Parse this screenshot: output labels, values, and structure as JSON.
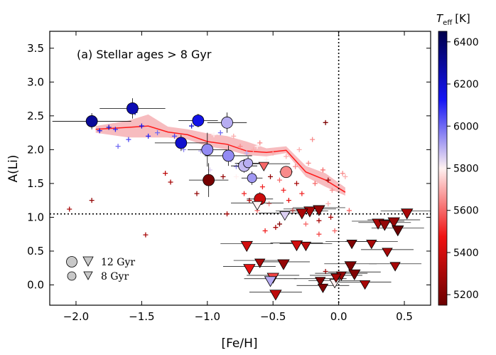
{
  "chart_data": {
    "type": "scatter",
    "title": "(a) Stellar ages > 8 Gyr",
    "xlabel": "[Fe/H]",
    "ylabel": "A(Li)",
    "xlim": [
      -2.2,
      0.7
    ],
    "ylim": [
      -0.3,
      3.75
    ],
    "xticks": [
      -2.0,
      -1.5,
      -1.0,
      -0.5,
      0.0,
      0.5
    ],
    "xtick_labels": [
      "−2.0",
      "−1.5",
      "−1.0",
      "−0.5",
      "0.0",
      "0.5"
    ],
    "yticks": [
      0.0,
      0.5,
      1.0,
      1.5,
      2.0,
      2.5,
      3.0,
      3.5
    ],
    "ytick_labels": [
      "0.0",
      "0.5",
      "1.0",
      "1.5",
      "2.0",
      "2.5",
      "3.0",
      "3.5"
    ],
    "reference_lines": {
      "horizontal_y": 1.05,
      "vertical_x": 0.0,
      "style": "dotted"
    },
    "colorbar": {
      "label_main": "T",
      "label_sub": "eff",
      "label_unit": "[K]",
      "range": [
        5150,
        6450
      ],
      "ticks": [
        5200,
        5400,
        5600,
        5800,
        6000,
        6200,
        6400
      ],
      "colormap": "seismic_r (dark red → white → dark blue)"
    },
    "legend": {
      "position": "lower-left",
      "entries": [
        {
          "label": "12 Gyr",
          "size": "large"
        },
        {
          "label": "8 Gyr",
          "size": "small"
        }
      ]
    },
    "trend_line": {
      "x": [
        -1.85,
        -1.6,
        -1.45,
        -1.3,
        -1.15,
        -1.0,
        -0.85,
        -0.7,
        -0.55,
        -0.4,
        -0.25,
        -0.1,
        0.05
      ],
      "y": [
        2.3,
        2.33,
        2.35,
        2.26,
        2.22,
        2.12,
        2.08,
        1.98,
        1.96,
        1.99,
        1.67,
        1.55,
        1.37
      ],
      "band_upper": [
        2.35,
        2.43,
        2.52,
        2.34,
        2.3,
        2.24,
        2.2,
        2.12,
        2.02,
        2.05,
        1.76,
        1.65,
        1.44
      ],
      "band_lower": [
        2.25,
        2.18,
        2.18,
        2.18,
        2.15,
        2.05,
        2.0,
        1.92,
        1.9,
        1.95,
        1.6,
        1.45,
        1.32
      ]
    },
    "detections": [
      {
        "feh": -1.88,
        "ali": 2.42,
        "teff": 6300,
        "age": 12,
        "xerr": 0.3,
        "yerr": 0.12
      },
      {
        "feh": -1.57,
        "ali": 2.61,
        "teff": 6250,
        "age": 12,
        "xerr": 0.25,
        "yerr": 0.15
      },
      {
        "feh": -1.2,
        "ali": 2.1,
        "teff": 6200,
        "age": 12,
        "xerr": 0.2,
        "yerr": 0.12
      },
      {
        "feh": -1.07,
        "ali": 2.43,
        "teff": 6150,
        "age": 12,
        "xerr": 0.15,
        "yerr": 0.1
      },
      {
        "feh": -1.0,
        "ali": 2.0,
        "teff": 5950,
        "age": 12,
        "xerr": 0.15,
        "yerr": 0.25
      },
      {
        "feh": -0.85,
        "ali": 2.4,
        "teff": 5900,
        "age": 12,
        "xerr": 0.15,
        "yerr": 0.15
      },
      {
        "feh": -0.84,
        "ali": 1.91,
        "teff": 5950,
        "age": 12,
        "xerr": 0.18,
        "yerr": 0.15
      },
      {
        "feh": -0.72,
        "ali": 1.76,
        "teff": 5880,
        "age": 12,
        "xerr": 0.1,
        "yerr": 0.1
      },
      {
        "feh": -0.69,
        "ali": 1.8,
        "teff": 5900,
        "age": 8,
        "xerr": 0.1,
        "yerr": 0.1
      },
      {
        "feh": -0.66,
        "ali": 1.58,
        "teff": 5930,
        "age": 8,
        "xerr": 0.08,
        "yerr": 0.1
      },
      {
        "feh": -0.99,
        "ali": 1.55,
        "teff": 5180,
        "age": 12,
        "xerr": 0.15,
        "yerr": 0.25
      },
      {
        "feh": -0.6,
        "ali": 1.27,
        "teff": 5380,
        "age": 12,
        "xerr": 0.1,
        "yerr": 0.1
      },
      {
        "feh": -0.4,
        "ali": 1.67,
        "teff": 5650,
        "age": 12,
        "xerr": 0.05,
        "yerr": 0.05
      }
    ],
    "upper_limits": [
      {
        "feh": -0.57,
        "ali": 1.75,
        "teff": 5600,
        "age": 8
      },
      {
        "feh": -0.62,
        "ali": 1.17,
        "teff": 5800,
        "age": 8
      },
      {
        "feh": -0.41,
        "ali": 1.02,
        "teff": 5850,
        "age": 8
      },
      {
        "feh": -0.22,
        "ali": 1.08,
        "teff": 5300,
        "age": 12
      },
      {
        "feh": -0.15,
        "ali": 1.1,
        "teff": 5250,
        "age": 12
      },
      {
        "feh": -0.7,
        "ali": 0.57,
        "teff": 5400,
        "age": 12
      },
      {
        "feh": -0.32,
        "ali": 0.58,
        "teff": 5400,
        "age": 12
      },
      {
        "feh": -0.25,
        "ali": 0.57,
        "teff": 5350,
        "age": 8
      },
      {
        "feh": -0.68,
        "ali": 0.23,
        "teff": 5450,
        "age": 12
      },
      {
        "feh": -0.6,
        "ali": 0.32,
        "teff": 5300,
        "age": 8
      },
      {
        "feh": -0.5,
        "ali": 0.1,
        "teff": 5550,
        "age": 12
      },
      {
        "feh": -0.52,
        "ali": 0.05,
        "teff": 5900,
        "age": 12
      },
      {
        "feh": -0.42,
        "ali": 0.3,
        "teff": 5250,
        "age": 12
      },
      {
        "feh": -0.48,
        "ali": -0.15,
        "teff": 5350,
        "age": 12
      },
      {
        "feh": -0.14,
        "ali": 0.05,
        "teff": 5200,
        "age": 8
      },
      {
        "feh": -0.12,
        "ali": -0.05,
        "teff": 5200,
        "age": 8
      },
      {
        "feh": -0.03,
        "ali": 0.02,
        "teff": 5800,
        "age": 8
      },
      {
        "feh": 0.09,
        "ali": 0.27,
        "teff": 5200,
        "age": 12
      },
      {
        "feh": 0.12,
        "ali": 0.15,
        "teff": 5200,
        "age": 12
      },
      {
        "feh": 0.2,
        "ali": 0.0,
        "teff": 5300,
        "age": 8
      },
      {
        "feh": 0.1,
        "ali": 0.6,
        "teff": 5200,
        "age": 8
      },
      {
        "feh": 0.25,
        "ali": 0.6,
        "teff": 5300,
        "age": 8
      },
      {
        "feh": 0.3,
        "ali": 0.9,
        "teff": 5300,
        "age": 12
      },
      {
        "feh": 0.35,
        "ali": 0.88,
        "teff": 5250,
        "age": 12
      },
      {
        "feh": 0.42,
        "ali": 0.92,
        "teff": 5250,
        "age": 12
      },
      {
        "feh": 0.45,
        "ali": 0.8,
        "teff": 5150,
        "age": 12
      },
      {
        "feh": 0.52,
        "ali": 1.05,
        "teff": 5300,
        "age": 12
      },
      {
        "feh": 0.37,
        "ali": 0.48,
        "teff": 5300,
        "age": 8
      },
      {
        "feh": 0.43,
        "ali": 0.27,
        "teff": 5300,
        "age": 8
      },
      {
        "feh": 0.02,
        "ali": 0.13,
        "teff": 5250,
        "age": 8
      },
      {
        "feh": -0.02,
        "ali": 0.1,
        "teff": 5300,
        "age": 8
      },
      {
        "feh": -0.28,
        "ali": 1.05,
        "teff": 5300,
        "age": 12
      }
    ],
    "field_stars": [
      {
        "feh": -2.05,
        "ali": 1.12,
        "teff": 5300
      },
      {
        "feh": -1.88,
        "ali": 1.25,
        "teff": 5250
      },
      {
        "feh": -1.82,
        "ali": 2.28,
        "teff": 6150
      },
      {
        "feh": -1.75,
        "ali": 2.33,
        "teff": 6200
      },
      {
        "feh": -1.7,
        "ali": 2.3,
        "teff": 6100
      },
      {
        "feh": -1.68,
        "ali": 2.05,
        "teff": 6000
      },
      {
        "feh": -1.6,
        "ali": 2.15,
        "teff": 6050
      },
      {
        "feh": -1.55,
        "ali": 2.55,
        "teff": 6200
      },
      {
        "feh": -1.5,
        "ali": 2.35,
        "teff": 6150
      },
      {
        "feh": -1.47,
        "ali": 0.74,
        "teff": 5300
      },
      {
        "feh": -1.45,
        "ali": 2.2,
        "teff": 6100
      },
      {
        "feh": -1.38,
        "ali": 2.25,
        "teff": 6000
      },
      {
        "feh": -1.32,
        "ali": 1.65,
        "teff": 5350
      },
      {
        "feh": -1.28,
        "ali": 1.52,
        "teff": 5300
      },
      {
        "feh": -1.25,
        "ali": 2.2,
        "teff": 6050
      },
      {
        "feh": -1.18,
        "ali": 2.0,
        "teff": 5950
      },
      {
        "feh": -1.12,
        "ali": 2.35,
        "teff": 6200
      },
      {
        "feh": -1.08,
        "ali": 1.35,
        "teff": 5250
      },
      {
        "feh": -1.05,
        "ali": 1.98,
        "teff": 5900
      },
      {
        "feh": -0.98,
        "ali": 1.7,
        "teff": 5850
      },
      {
        "feh": -0.95,
        "ali": 2.22,
        "teff": 5800
      },
      {
        "feh": -0.9,
        "ali": 2.25,
        "teff": 6000
      },
      {
        "feh": -0.85,
        "ali": 1.05,
        "teff": 5300
      },
      {
        "feh": -0.82,
        "ali": 1.85,
        "teff": 5900
      },
      {
        "feh": -0.8,
        "ali": 2.2,
        "teff": 5700
      },
      {
        "feh": -0.78,
        "ali": 1.6,
        "teff": 5800
      },
      {
        "feh": -0.75,
        "ali": 2.05,
        "teff": 5650
      },
      {
        "feh": -0.72,
        "ali": 1.35,
        "teff": 5500
      },
      {
        "feh": -0.7,
        "ali": 1.95,
        "teff": 5900
      },
      {
        "feh": -0.68,
        "ali": 1.25,
        "teff": 5300
      },
      {
        "feh": -0.65,
        "ali": 2.0,
        "teff": 5700
      },
      {
        "feh": -0.62,
        "ali": 1.1,
        "teff": 5600
      },
      {
        "feh": -0.6,
        "ali": 2.1,
        "teff": 5650
      },
      {
        "feh": -0.58,
        "ali": 1.45,
        "teff": 5500
      },
      {
        "feh": -0.55,
        "ali": 1.85,
        "teff": 5800
      },
      {
        "feh": -0.53,
        "ali": 1.2,
        "teff": 5650
      },
      {
        "feh": -0.5,
        "ali": 1.95,
        "teff": 5700
      },
      {
        "feh": -0.48,
        "ali": 0.85,
        "teff": 5300
      },
      {
        "feh": -0.45,
        "ali": 1.55,
        "teff": 5600
      },
      {
        "feh": -0.42,
        "ali": 1.4,
        "teff": 5500
      },
      {
        "feh": -0.4,
        "ali": 1.9,
        "teff": 5700
      },
      {
        "feh": -0.38,
        "ali": 1.25,
        "teff": 5450
      },
      {
        "feh": -0.35,
        "ali": 1.1,
        "teff": 5600
      },
      {
        "feh": -0.33,
        "ali": 1.75,
        "teff": 5650
      },
      {
        "feh": -0.3,
        "ali": 2.0,
        "teff": 5700
      },
      {
        "feh": -0.28,
        "ali": 1.35,
        "teff": 5500
      },
      {
        "feh": -0.25,
        "ali": 0.9,
        "teff": 5600
      },
      {
        "feh": -0.23,
        "ali": 1.8,
        "teff": 5650
      },
      {
        "feh": -0.2,
        "ali": 2.15,
        "teff": 5650
      },
      {
        "feh": -0.18,
        "ali": 1.5,
        "teff": 5600
      },
      {
        "feh": -0.15,
        "ali": 0.75,
        "teff": 5550
      },
      {
        "feh": -0.12,
        "ali": 1.7,
        "teff": 5600
      },
      {
        "feh": -0.1,
        "ali": 2.4,
        "teff": 5200
      },
      {
        "feh": -0.08,
        "ali": 1.2,
        "teff": 5700
      },
      {
        "feh": -0.06,
        "ali": 1.0,
        "teff": 5300
      },
      {
        "feh": -0.05,
        "ali": 1.4,
        "teff": 5650
      },
      {
        "feh": -0.03,
        "ali": 0.8,
        "teff": 5600
      },
      {
        "feh": 0.03,
        "ali": 1.65,
        "teff": 5650
      },
      {
        "feh": 0.05,
        "ali": 1.6,
        "teff": 5700
      },
      {
        "feh": 0.08,
        "ali": 1.1,
        "teff": 5600
      },
      {
        "feh": -0.88,
        "ali": 1.6,
        "teff": 5250
      },
      {
        "feh": -0.52,
        "ali": 1.6,
        "teff": 5250
      },
      {
        "feh": -0.45,
        "ali": 0.9,
        "teff": 5200
      },
      {
        "feh": -0.32,
        "ali": 1.5,
        "teff": 5300
      },
      {
        "feh": -0.1,
        "ali": 0.2,
        "teff": 5250
      },
      {
        "feh": -0.08,
        "ali": 1.55,
        "teff": 5250
      },
      {
        "feh": -0.56,
        "ali": 0.8,
        "teff": 5500
      },
      {
        "feh": -0.15,
        "ali": 0.95,
        "teff": 5300
      },
      {
        "feh": -0.62,
        "ali": 2.05,
        "teff": 5800
      },
      {
        "feh": -0.78,
        "ali": 1.75,
        "teff": 5950
      }
    ]
  }
}
